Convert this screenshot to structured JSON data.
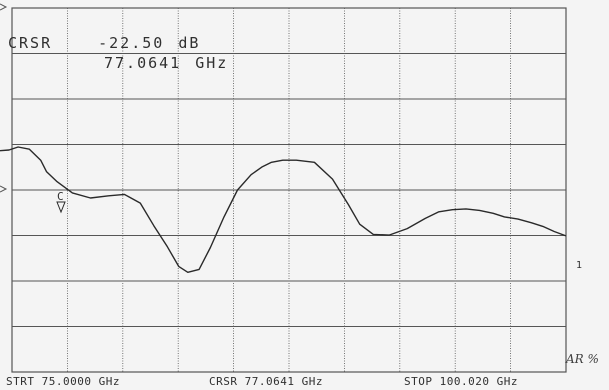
{
  "readout": {
    "label": "CRSR",
    "value": "-22.50",
    "unit": "dB",
    "frequency": "77.0641",
    "frequency_unit": "GHz"
  },
  "footer": {
    "start": "STRT 75.0000 GHz",
    "cursor": "CRSR 77.0641 GHz",
    "stop": "STOP 100.020 GHz"
  },
  "marker_label": "C",
  "right_marker": "1",
  "handwriting": "AR %",
  "chart_data": {
    "type": "line",
    "xlim": [
      75.0,
      100.02
    ],
    "ylim": [
      -50,
      0
    ],
    "grid": true,
    "vertical_divisions": 10,
    "horizontal_divisions": 8,
    "series": [
      {
        "x": [
          75.0,
          75.4,
          75.8,
          76.3,
          76.8,
          77.06,
          77.5,
          78.2,
          79.0,
          79.8,
          80.5,
          81.2,
          81.8,
          82.4,
          82.9,
          83.3,
          83.8,
          84.3,
          84.9,
          85.5,
          86.1,
          86.6,
          87.0,
          87.5,
          88.1,
          88.9,
          89.7,
          90.4,
          90.9,
          91.5,
          92.2,
          93.0,
          93.8,
          94.4,
          95.0,
          95.6,
          96.2,
          96.8,
          97.3,
          97.9,
          98.5,
          99.0,
          99.5,
          100.02
        ],
        "y": [
          -19.6,
          -19.5,
          -19.1,
          -19.4,
          -20.9,
          -22.5,
          -23.8,
          -25.4,
          -26.1,
          -25.8,
          -25.6,
          -26.8,
          -29.9,
          -32.8,
          -35.5,
          -36.3,
          -35.9,
          -32.9,
          -28.7,
          -25.0,
          -22.9,
          -21.8,
          -21.2,
          -20.9,
          -20.9,
          -21.2,
          -23.5,
          -27.0,
          -29.7,
          -31.1,
          -31.2,
          -30.3,
          -28.9,
          -28.0,
          -27.7,
          -27.6,
          -27.8,
          -28.2,
          -28.7,
          -29.0,
          -29.5,
          -30.0,
          -30.7,
          -31.3
        ]
      }
    ]
  },
  "colors": {
    "background": "#f4f4f4",
    "grid": "#555555",
    "trace": "#2a2a2a"
  }
}
